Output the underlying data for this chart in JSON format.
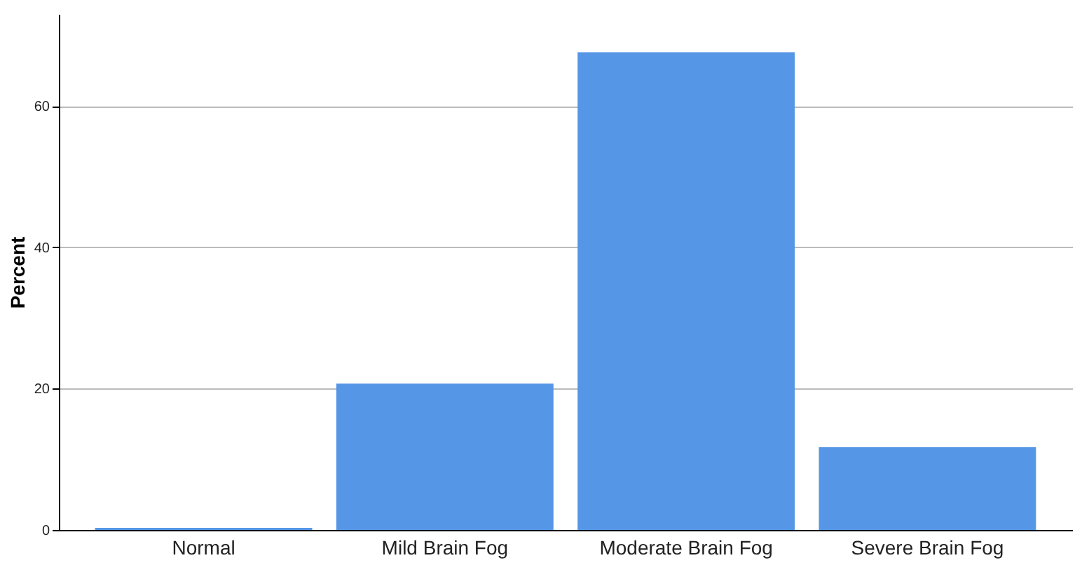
{
  "chart_data": {
    "type": "bar",
    "ylabel": "Percent",
    "categories": [
      "Normal",
      "Mild Brain Fog",
      "Moderate Brain Fog",
      "Severe Brain Fog"
    ],
    "values": [
      0.3,
      20.7,
      67.6,
      11.7
    ],
    "color": "#5596e6",
    "ylim": [
      0,
      73
    ],
    "yticks": [
      0,
      20,
      40,
      60
    ],
    "grid": "y"
  }
}
